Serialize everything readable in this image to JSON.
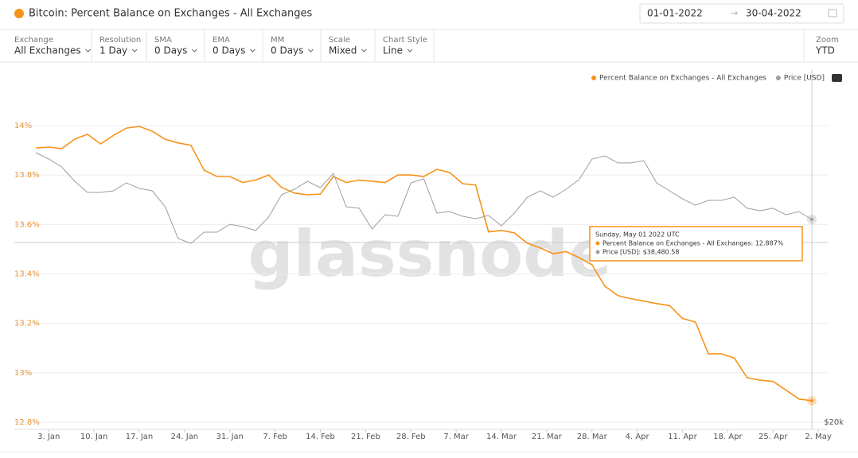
{
  "header": {
    "title": "Bitcoin: Percent Balance on Exchanges - All Exchanges",
    "date_from": "01-01-2022",
    "date_arrow": "→",
    "date_to": "30-04-2022"
  },
  "toolbar": [
    {
      "label": "Exchange",
      "value": "All Exchanges"
    },
    {
      "label": "Resolution",
      "value": "1 Day"
    },
    {
      "label": "SMA",
      "value": "0 Days"
    },
    {
      "label": "EMA",
      "value": "0 Days"
    },
    {
      "label": "MM",
      "value": "0 Days"
    },
    {
      "label": "Scale",
      "value": "Mixed"
    },
    {
      "label": "Chart Style",
      "value": "Line"
    }
  ],
  "zoom": {
    "label": "Zoom",
    "value": "YTD"
  },
  "watermark": "glassnode",
  "tooltip": {
    "title": "Sunday, May 01 2022 UTC",
    "lines": [
      "Percent Balance on Exchanges - All Exchanges: 12.887%",
      "Price [USD]: $38,480.58"
    ]
  },
  "chart_data": {
    "type": "line",
    "x": [
      "2022-01-01",
      "2022-01-03",
      "2022-01-05",
      "2022-01-07",
      "2022-01-09",
      "2022-01-11",
      "2022-01-13",
      "2022-01-15",
      "2022-01-17",
      "2022-01-19",
      "2022-01-21",
      "2022-01-23",
      "2022-01-25",
      "2022-01-27",
      "2022-01-29",
      "2022-01-31",
      "2022-02-02",
      "2022-02-04",
      "2022-02-06",
      "2022-02-08",
      "2022-02-10",
      "2022-02-12",
      "2022-02-14",
      "2022-02-16",
      "2022-02-18",
      "2022-02-20",
      "2022-02-22",
      "2022-02-24",
      "2022-02-26",
      "2022-02-28",
      "2022-03-02",
      "2022-03-04",
      "2022-03-06",
      "2022-03-08",
      "2022-03-10",
      "2022-03-12",
      "2022-03-14",
      "2022-03-16",
      "2022-03-18",
      "2022-03-20",
      "2022-03-22",
      "2022-03-24",
      "2022-03-26",
      "2022-03-28",
      "2022-03-30",
      "2022-04-01",
      "2022-04-03",
      "2022-04-05",
      "2022-04-07",
      "2022-04-09",
      "2022-04-11",
      "2022-04-13",
      "2022-04-15",
      "2022-04-17",
      "2022-04-19",
      "2022-04-21",
      "2022-04-23",
      "2022-04-25",
      "2022-04-27",
      "2022-04-29",
      "2022-05-01"
    ],
    "series": [
      {
        "name": "Percent Balance on Exchanges - All Exchanges",
        "color": "#f7931a",
        "values": [
          13.91,
          13.913,
          13.907,
          13.945,
          13.965,
          13.926,
          13.96,
          13.99,
          13.997,
          13.977,
          13.945,
          13.93,
          13.92,
          13.82,
          13.794,
          13.794,
          13.77,
          13.78,
          13.8,
          13.75,
          13.727,
          13.72,
          13.723,
          13.794,
          13.77,
          13.78,
          13.775,
          13.77,
          13.8,
          13.8,
          13.794,
          13.823,
          13.81,
          13.765,
          13.76,
          13.57,
          13.576,
          13.566,
          13.524,
          13.505,
          13.482,
          13.49,
          13.466,
          13.437,
          13.35,
          13.312,
          13.3,
          13.29,
          13.28,
          13.272,
          13.22,
          13.205,
          13.077,
          13.077,
          13.06,
          12.98,
          12.97,
          12.965,
          12.93,
          12.894,
          12.887
        ]
      },
      {
        "name": "Price [USD]",
        "color": "#9e9e9e",
        "axis": "y2",
        "values": [
          44570,
          43990,
          43260,
          41960,
          40940,
          40940,
          41090,
          41810,
          41310,
          41090,
          39640,
          36740,
          36300,
          37320,
          37320,
          38040,
          37830,
          37470,
          38700,
          40730,
          41230,
          41960,
          41380,
          42680,
          39640,
          39500,
          37610,
          38910,
          38770,
          41810,
          42180,
          39060,
          39200,
          38770,
          38550,
          38840,
          37900,
          39060,
          40510,
          41090,
          40510,
          41230,
          42100,
          43990,
          44280,
          43630,
          43630,
          43840,
          41810,
          41090,
          40360,
          39780,
          40220,
          40220,
          40510,
          39500,
          39280,
          39500,
          38910,
          39200,
          38480.58
        ]
      }
    ],
    "xlim": [
      "2022-01-01",
      "2022-05-01"
    ],
    "xticks": [
      {
        "value": "2022-01-03",
        "label": "3. Jan"
      },
      {
        "value": "2022-01-10",
        "label": "10. Jan"
      },
      {
        "value": "2022-01-17",
        "label": "17. Jan"
      },
      {
        "value": "2022-01-24",
        "label": "24. Jan"
      },
      {
        "value": "2022-01-31",
        "label": "31. Jan"
      },
      {
        "value": "2022-02-07",
        "label": "7. Feb"
      },
      {
        "value": "2022-02-14",
        "label": "14. Feb"
      },
      {
        "value": "2022-02-21",
        "label": "21. Feb"
      },
      {
        "value": "2022-02-28",
        "label": "28. Feb"
      },
      {
        "value": "2022-03-07",
        "label": "7. Mar"
      },
      {
        "value": "2022-03-14",
        "label": "14. Mar"
      },
      {
        "value": "2022-03-21",
        "label": "21. Mar"
      },
      {
        "value": "2022-03-28",
        "label": "28. Mar"
      },
      {
        "value": "2022-04-04",
        "label": "4. Apr"
      },
      {
        "value": "2022-04-11",
        "label": "11. Apr"
      },
      {
        "value": "2022-04-18",
        "label": "18. Apr"
      },
      {
        "value": "2022-04-25",
        "label": "25. Apr"
      },
      {
        "value": "2022-05-02",
        "label": "2. May"
      }
    ],
    "ylim": [
      12.771,
      14.09
    ],
    "yticks": [
      {
        "value": 12.8,
        "label": "12.8%"
      },
      {
        "value": 13,
        "label": "13%"
      },
      {
        "value": 13.2,
        "label": "13.2%"
      },
      {
        "value": 13.4,
        "label": "13.4%"
      },
      {
        "value": 13.6,
        "label": "13.6%"
      },
      {
        "value": 13.8,
        "label": "13.8%"
      },
      {
        "value": 14,
        "label": "14%"
      }
    ],
    "y2lim": [
      19348,
      49060
    ],
    "y2ticks": [
      {
        "value": 20000,
        "label": "$20k"
      }
    ],
    "grid": true,
    "legend": "top-right"
  }
}
